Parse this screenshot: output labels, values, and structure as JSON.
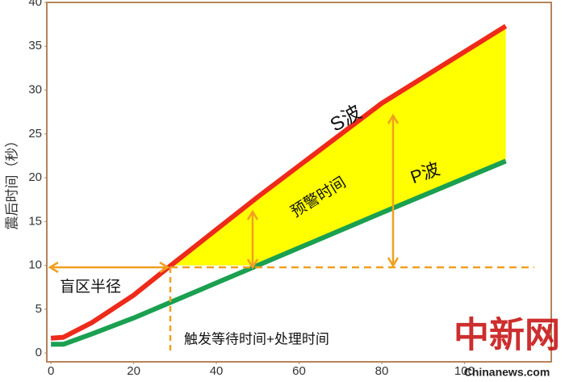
{
  "chart_data": {
    "type": "line",
    "y_label": "震后时间（秒）",
    "x": [
      0,
      3,
      10,
      20,
      29,
      50,
      80,
      110
    ],
    "series": [
      {
        "name": "S波",
        "color": "#ee2a1a",
        "values": [
          1.7,
          1.8,
          3.5,
          6.6,
          10,
          17.8,
          28.5,
          37.3
        ]
      },
      {
        "name": "P波",
        "color": "#1aa050",
        "values": [
          1.0,
          1.0,
          2.2,
          4.0,
          5.8,
          10,
          16,
          21.9
        ]
      }
    ],
    "xlim": [
      -1,
      121
    ],
    "ylim": [
      -1,
      40
    ],
    "xticks": [
      0,
      20,
      40,
      60,
      80,
      100
    ],
    "yticks": [
      0,
      5,
      10,
      15,
      20,
      25,
      30,
      35,
      40
    ],
    "fill_color": "#ffff00",
    "annotations": {
      "warning": "预警时间",
      "blind": "盲区半径",
      "trigger": "触发等待时间+处理时间"
    },
    "watermark": "中新网",
    "watermark_sub": "Chinanews.com"
  }
}
